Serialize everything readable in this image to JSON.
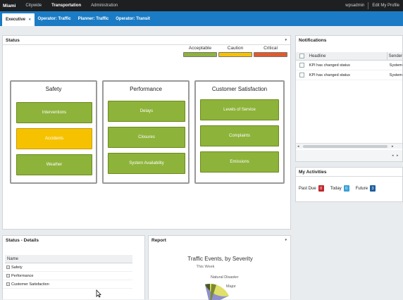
{
  "topbar": {
    "brand": "Miami",
    "nav": [
      "Citywide",
      "Transportation",
      "Administration"
    ],
    "active_nav": 1,
    "user": "wpsadmin",
    "profile_link": "Edit My Profile"
  },
  "tabs": {
    "items": [
      "Executive",
      "Operator: Traffic",
      "Planner: Traffic",
      "Operator: Transit"
    ],
    "active": 0,
    "caret": "▾"
  },
  "status": {
    "title": "Status",
    "collapse": "▾",
    "legend": [
      {
        "label": "Acceptable",
        "color": "#8db33a"
      },
      {
        "label": "Caution",
        "color": "#f6c200"
      },
      {
        "label": "Critical",
        "color": "#e2592a"
      }
    ],
    "categories": [
      {
        "title": "Safety",
        "items": [
          {
            "label": "Interventions",
            "status": "acceptable"
          },
          {
            "label": "Accidents",
            "status": "caution"
          },
          {
            "label": "Weather",
            "status": "acceptable"
          }
        ]
      },
      {
        "title": "Performance",
        "items": [
          {
            "label": "Delays",
            "status": "acceptable"
          },
          {
            "label": "Closures",
            "status": "acceptable"
          },
          {
            "label": "System Availability",
            "status": "acceptable"
          }
        ]
      },
      {
        "title": "Customer Satisfaction",
        "items": [
          {
            "label": "Levels of Service",
            "status": "acceptable"
          },
          {
            "label": "Complaints",
            "status": "acceptable"
          },
          {
            "label": "Emissions",
            "status": "acceptable"
          }
        ]
      }
    ]
  },
  "notifications": {
    "title": "Notifications",
    "columns": [
      "Headline",
      "Sender"
    ],
    "rows": [
      {
        "headline": "KPI has changed status",
        "sender": "System"
      },
      {
        "headline": "KPI has changed status",
        "sender": "System"
      }
    ]
  },
  "activities": {
    "title": "My Activities",
    "items": [
      {
        "label": "Past Due",
        "count": "0",
        "color": "#c0282d"
      },
      {
        "label": "Today",
        "count": "0",
        "color": "#3aa0d8"
      },
      {
        "label": "Future",
        "count": "3",
        "color": "#1e5e9e"
      }
    ]
  },
  "details": {
    "title": "Status - Details",
    "column": "Name",
    "rows": [
      "Safety",
      "Performance",
      "Customer Satisfaction"
    ]
  },
  "report": {
    "title": "Report",
    "collapse": "▾",
    "chart_title": "Traffic Events, by Severity",
    "chart_subtitle": "This Week",
    "labels": [
      "Natural Disaster",
      "Major"
    ]
  }
}
